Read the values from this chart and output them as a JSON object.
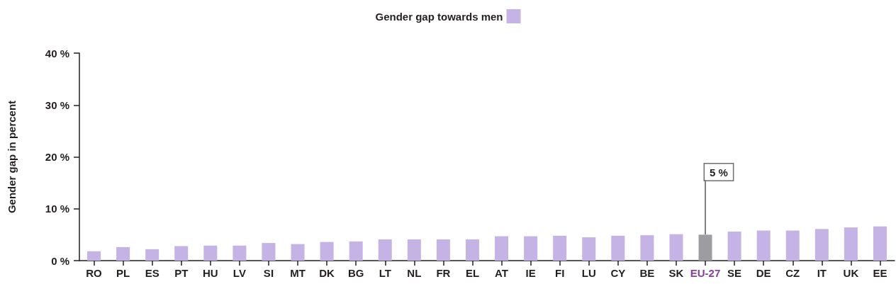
{
  "chart_data": {
    "type": "bar",
    "ylabel": "Gender gap in percent",
    "categories": [
      "RO",
      "PL",
      "ES",
      "PT",
      "HU",
      "LV",
      "SI",
      "MT",
      "DK",
      "BG",
      "LT",
      "NL",
      "FR",
      "EL",
      "AT",
      "IE",
      "FI",
      "LU",
      "CY",
      "BE",
      "SK",
      "EU-27",
      "SE",
      "DE",
      "CZ",
      "IT",
      "UK",
      "EE"
    ],
    "series": [
      {
        "name": "Gender gap towards men",
        "color": "#c5b3e6",
        "colors": [
          "#c5b3e6",
          "#c5b3e6",
          "#c5b3e6",
          "#c5b3e6",
          "#c5b3e6",
          "#c5b3e6",
          "#c5b3e6",
          "#c5b3e6",
          "#c5b3e6",
          "#c5b3e6",
          "#c5b3e6",
          "#c5b3e6",
          "#c5b3e6",
          "#c5b3e6",
          "#c5b3e6",
          "#c5b3e6",
          "#c5b3e6",
          "#c5b3e6",
          "#c5b3e6",
          "#c5b3e6",
          "#c5b3e6",
          "#9d9ca1",
          "#c5b3e6",
          "#c5b3e6",
          "#c5b3e6",
          "#c5b3e6",
          "#c5b3e6",
          "#c5b3e6"
        ],
        "values": [
          1.8,
          2.6,
          2.2,
          2.8,
          2.9,
          2.9,
          3.4,
          3.2,
          3.6,
          3.7,
          4.1,
          4.1,
          4.1,
          4.1,
          4.7,
          4.7,
          4.8,
          4.5,
          4.8,
          4.9,
          5.1,
          5.0,
          5.6,
          5.8,
          5.8,
          6.1,
          6.4,
          6.6
        ]
      }
    ],
    "ylim": [
      0,
      40
    ],
    "yticks": [
      {
        "value": 0,
        "label": "0 %"
      },
      {
        "value": 10,
        "label": "10 %"
      },
      {
        "value": 20,
        "label": "20 %"
      },
      {
        "value": 30,
        "label": "30 %"
      },
      {
        "value": 40,
        "label": "40 %"
      }
    ],
    "grid": false,
    "legend": "top",
    "annotations": [
      {
        "text": "5 %",
        "x": "EU-27",
        "y": 5
      }
    ]
  }
}
